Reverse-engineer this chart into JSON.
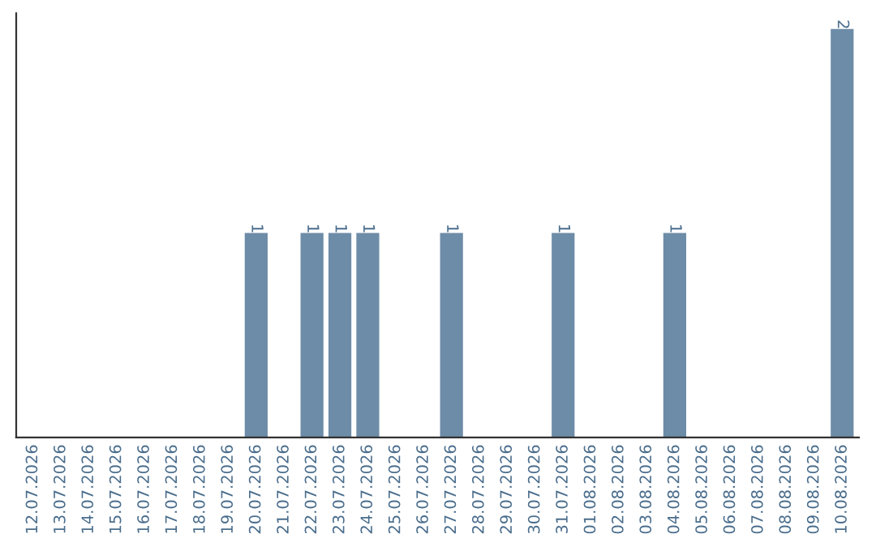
{
  "chart_data": {
    "type": "bar",
    "categories": [
      "12.07.2026",
      "13.07.2026",
      "14.07.2026",
      "15.07.2026",
      "16.07.2026",
      "17.07.2026",
      "18.07.2026",
      "19.07.2026",
      "20.07.2026",
      "21.07.2026",
      "22.07.2026",
      "23.07.2026",
      "24.07.2026",
      "25.07.2026",
      "26.07.2026",
      "27.07.2026",
      "28.07.2026",
      "29.07.2026",
      "30.07.2026",
      "31.07.2026",
      "01.08.2026",
      "02.08.2026",
      "03.08.2026",
      "04.08.2026",
      "05.08.2026",
      "06.08.2026",
      "07.08.2026",
      "08.08.2026",
      "09.08.2026",
      "10.08.2026"
    ],
    "values": [
      0,
      0,
      0,
      0,
      0,
      0,
      0,
      0,
      1,
      0,
      1,
      1,
      1,
      0,
      0,
      1,
      0,
      0,
      0,
      1,
      0,
      0,
      0,
      1,
      0,
      0,
      0,
      0,
      0,
      2
    ],
    "value_labels": [
      null,
      null,
      null,
      null,
      null,
      null,
      null,
      null,
      "1",
      null,
      "1",
      "1",
      "1",
      null,
      null,
      "1",
      null,
      null,
      null,
      "1",
      null,
      null,
      null,
      "1",
      null,
      null,
      null,
      null,
      null,
      "2"
    ],
    "color": "#6d8ca8",
    "grid": false,
    "legend": false
  }
}
